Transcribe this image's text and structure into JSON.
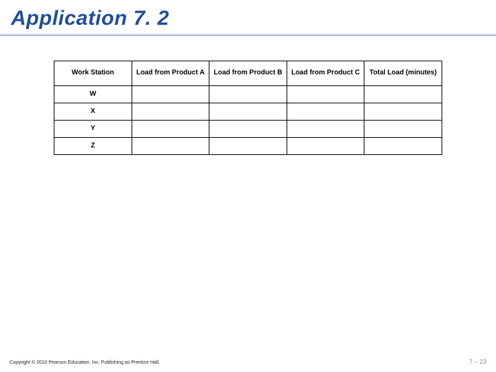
{
  "title": {
    "text": "Application 7. 2",
    "color": "#1f4e9b",
    "fontsize": 30
  },
  "rule_color": "#9db3d9",
  "table": {
    "border_color": "#000000",
    "header_bg": "#ffffff",
    "header_fontsize": 10,
    "row_fontsize": 10,
    "columns": [
      "Work Station",
      "Load from Product A",
      "Load from Product B",
      "Load from Product C",
      "Total Load (minutes)"
    ],
    "rows": [
      {
        "label": "W",
        "cells": [
          "",
          "",
          "",
          ""
        ]
      },
      {
        "label": "X",
        "cells": [
          "",
          "",
          "",
          ""
        ]
      },
      {
        "label": "Y",
        "cells": [
          "",
          "",
          "",
          ""
        ]
      },
      {
        "label": "Z",
        "cells": [
          "",
          "",
          "",
          ""
        ]
      }
    ]
  },
  "footer": {
    "copyright": "Copyright © 2010 Pearson Education, Inc. Publishing as Prentice Hall.",
    "page": "7 – 23",
    "page_color": "#7a8aa0"
  }
}
